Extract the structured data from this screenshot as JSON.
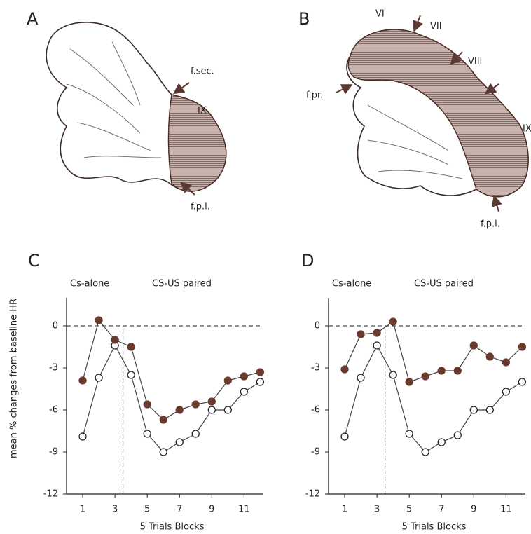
{
  "diagrams": [
    {
      "label": "A",
      "annotations": [
        "f.sec.",
        "IX",
        "f.p.l."
      ]
    },
    {
      "label": "B",
      "annotations": [
        "VI",
        "VII",
        "VIII",
        "f.pr.",
        "IX",
        "f.p.l."
      ]
    }
  ],
  "y_axis_label": "mean % changes from baseline HR",
  "chart_data": [
    {
      "type": "line",
      "title": "C",
      "xlabel": "5 Trials Blocks",
      "annotations": [
        "Cs-alone",
        "CS-US paired"
      ],
      "x": [
        1,
        2,
        3,
        4,
        5,
        6,
        7,
        8,
        9,
        10,
        11,
        12
      ],
      "series": [
        {
          "color": "#6b3a2e",
          "marker": "filled",
          "values": [
            -3.9,
            0.4,
            -1.0,
            -1.5,
            -5.6,
            -6.7,
            -6.0,
            -5.6,
            -5.4,
            -3.9,
            -3.6,
            -3.3
          ]
        },
        {
          "color": "#222222",
          "marker": "open",
          "values": [
            -7.9,
            -3.7,
            -1.4,
            -3.5,
            -7.7,
            -9.0,
            -8.3,
            -7.7,
            -6.0,
            -6.0,
            -4.7,
            -4.0
          ]
        }
      ],
      "xlim": [
        0,
        12.2
      ],
      "ylim": [
        -12,
        2
      ],
      "xticks": [
        1,
        3,
        5,
        7,
        9,
        11
      ],
      "yticks": [
        -12,
        -9,
        -6,
        -3,
        0
      ],
      "vline": 3.5,
      "hline": 0
    },
    {
      "type": "line",
      "title": "D",
      "xlabel": "5 Trials Blocks",
      "annotations": [
        "Cs-alone",
        "CS-US paired"
      ],
      "x": [
        1,
        2,
        3,
        4,
        5,
        6,
        7,
        8,
        9,
        10,
        11,
        12
      ],
      "series": [
        {
          "color": "#6b3a2e",
          "marker": "filled",
          "values": [
            -3.1,
            -0.6,
            -0.5,
            0.3,
            -4.0,
            -3.6,
            -3.2,
            -3.2,
            -1.4,
            -2.2,
            -2.6,
            -1.5
          ]
        },
        {
          "color": "#222222",
          "marker": "open",
          "values": [
            -7.9,
            -3.7,
            -1.4,
            -3.5,
            -7.7,
            -9.0,
            -8.3,
            -7.8,
            -6.0,
            -6.0,
            -4.7,
            -4.0
          ]
        }
      ],
      "xlim": [
        0,
        12.2
      ],
      "ylim": [
        -12,
        2
      ],
      "xticks": [
        1,
        3,
        5,
        7,
        9,
        11
      ],
      "yticks": [
        -12,
        -9,
        -6,
        -3,
        0
      ],
      "vline": 3.5,
      "hline": 0
    }
  ]
}
